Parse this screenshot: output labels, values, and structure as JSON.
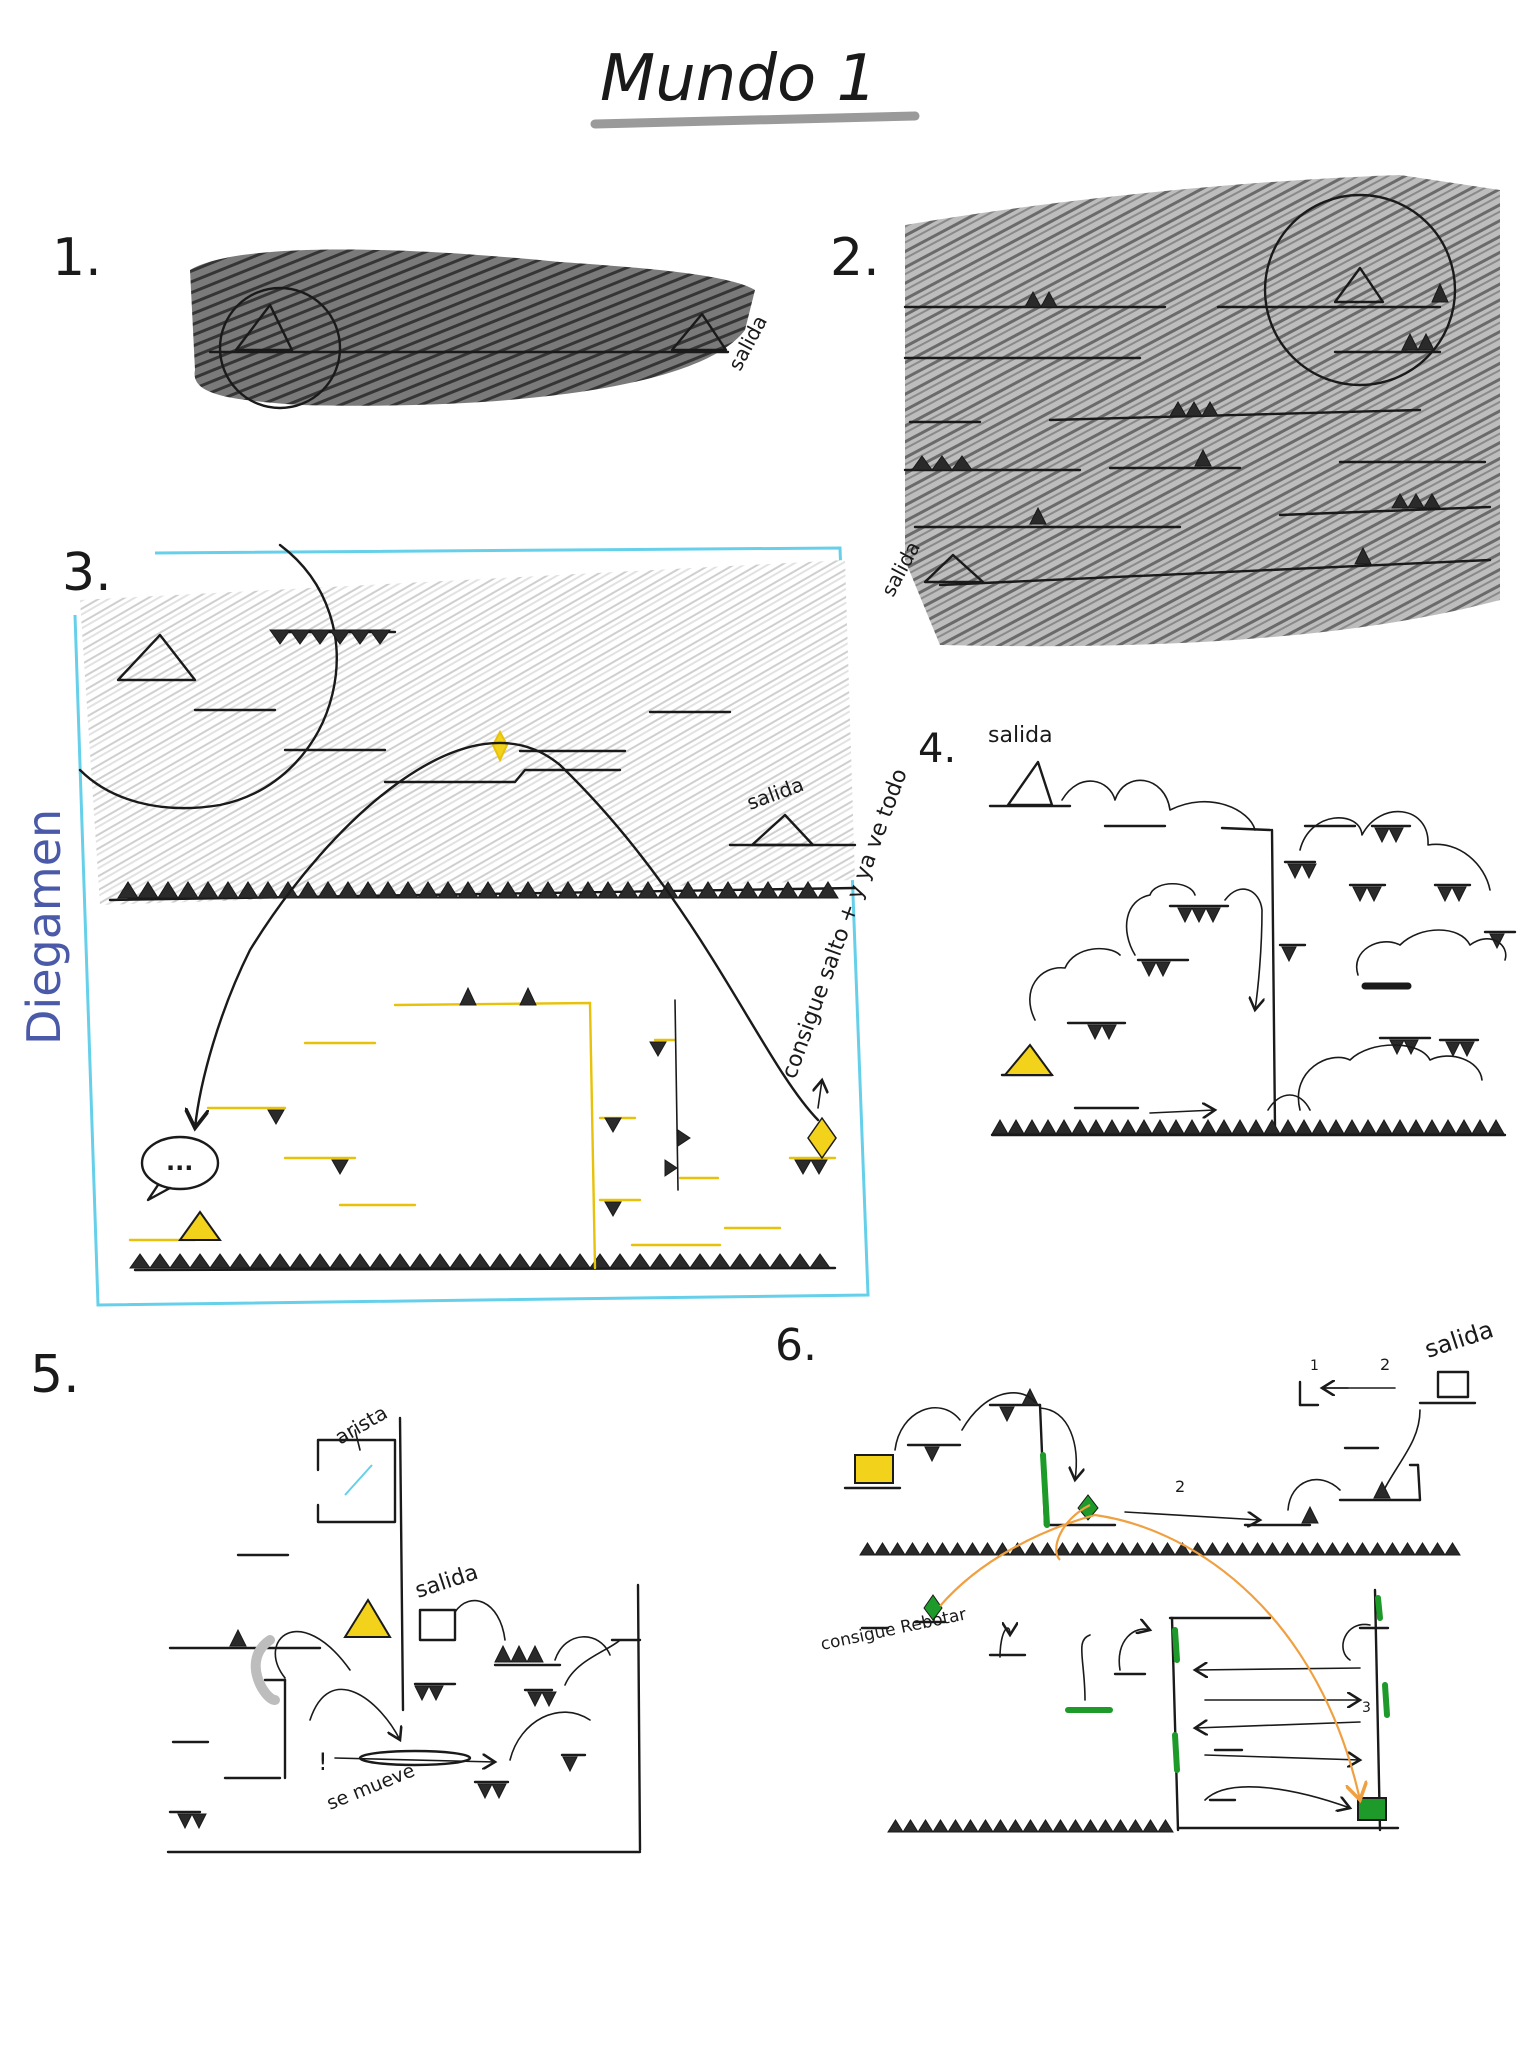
{
  "title": "Mundo 1",
  "colors": {
    "ink": "#1a1a1a",
    "shade": "#9a9a9a",
    "player_yellow": "#f2d21a",
    "platform_yellow": "#e8c20a",
    "frame_cyan": "#66d0ea",
    "signature_blue": "#4a5aa8",
    "bounce_green": "#1e9a2a",
    "trajectory_orange": "#f0a040"
  },
  "panels": [
    {
      "number": "1.",
      "labels": {
        "exit": "salida"
      }
    },
    {
      "number": "2.",
      "labels": {
        "exit": "salida"
      }
    },
    {
      "number": "3.",
      "labels": {
        "exit": "salida",
        "ability": "consigue salto + y ya ve todo",
        "speech": "..."
      }
    },
    {
      "number": "4.",
      "labels": {
        "exit": "salida"
      }
    },
    {
      "number": "5.",
      "labels": {
        "edge": "arista",
        "exit": "salida",
        "mover": "se mueve",
        "warn": "!"
      }
    },
    {
      "number": "6.",
      "labels": {
        "exit": "salida",
        "ability": "consigue Rebotar",
        "seq_1": "1",
        "seq_2": "2",
        "seq_3": "3"
      }
    }
  ],
  "signature": "Diegamen"
}
